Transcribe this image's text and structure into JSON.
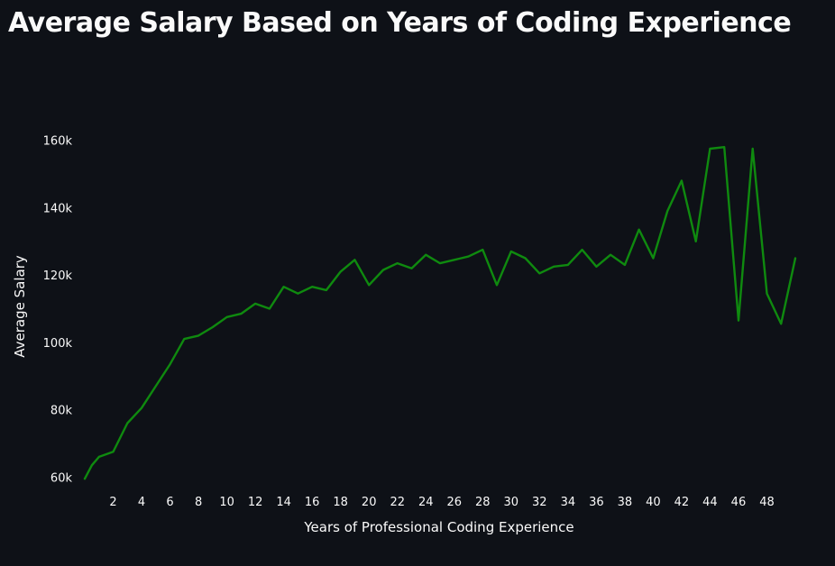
{
  "page": {
    "title": "Average Salary Based on Years of Coding Experience"
  },
  "colors": {
    "background": "#0e1117",
    "line": "#0f8a0f",
    "text": "#fafafa"
  },
  "chart_data": {
    "type": "line",
    "title": "Average Salary Based on Years of Coding Experience",
    "xlabel": "Years of Professional Coding Experience",
    "ylabel": "Average Salary",
    "grid": false,
    "xlim": [
      0,
      50
    ],
    "ylim": [
      55000,
      165000
    ],
    "x_ticks": [
      2,
      4,
      6,
      8,
      10,
      12,
      14,
      16,
      18,
      20,
      22,
      24,
      26,
      28,
      30,
      32,
      34,
      36,
      38,
      40,
      42,
      44,
      46,
      48
    ],
    "y_ticks": [
      {
        "value": 60000,
        "label": "60k"
      },
      {
        "value": 80000,
        "label": "80k"
      },
      {
        "value": 100000,
        "label": "100k"
      },
      {
        "value": 120000,
        "label": "120k"
      },
      {
        "value": 140000,
        "label": "140k"
      },
      {
        "value": 160000,
        "label": "160k"
      }
    ],
    "series": [
      {
        "x": [
          0,
          0.5,
          1,
          2,
          3,
          4,
          5,
          6,
          7,
          8,
          9,
          10,
          11,
          12,
          13,
          14,
          15,
          16,
          17,
          18,
          19,
          20,
          21,
          22,
          23,
          24,
          25,
          26,
          27,
          28,
          29,
          30,
          31,
          32,
          33,
          34,
          35,
          36,
          37,
          38,
          39,
          40,
          41,
          42,
          43,
          44,
          45,
          46,
          47,
          48,
          49,
          50
        ],
        "y": [
          59500,
          63500,
          66000,
          67500,
          76000,
          80500,
          87000,
          93500,
          101000,
          102000,
          104500,
          107500,
          108500,
          111500,
          110000,
          116500,
          114500,
          116500,
          115500,
          121000,
          124500,
          117000,
          121500,
          123500,
          122000,
          126000,
          123500,
          124500,
          125500,
          127500,
          117000,
          127000,
          125000,
          120500,
          122500,
          123000,
          127500,
          122500,
          126000,
          123000,
          133500,
          125000,
          139000,
          148000,
          130000,
          157500,
          158000,
          106500,
          157500,
          114500,
          105500,
          125000
        ]
      }
    ]
  }
}
